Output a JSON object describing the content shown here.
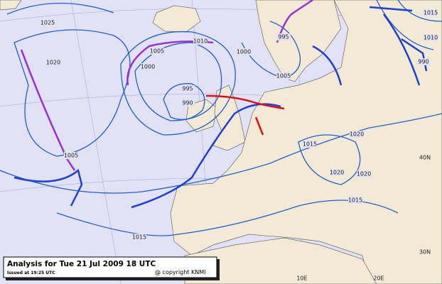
{
  "title": "Analysis for Tue 21 Jul 2009 18 UTC",
  "issued": "Issued at 19:25 UTC",
  "copyright": "@ copyright KNMI",
  "isobar_labels": [
    "1025",
    "1020",
    "1005",
    "1010",
    "1000",
    "995",
    "990",
    "1005",
    "1015",
    "1020",
    "1015",
    "1020",
    "1020",
    "1015",
    "1010",
    "1015",
    "1000",
    "1005",
    "995",
    "990"
  ],
  "grid_labels": [
    "10E",
    "20E",
    "40N",
    "30N"
  ]
}
